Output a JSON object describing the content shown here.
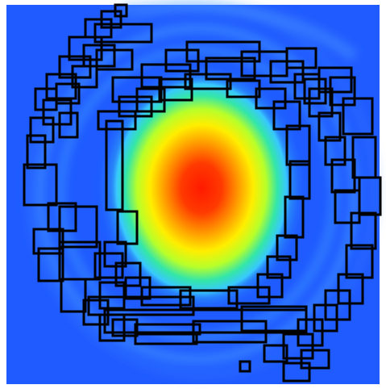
{
  "figure": {
    "kind": "heatmap with overlaid box outlines",
    "colormap": "jet",
    "background_color": "#1f5bff",
    "outline_color": "#000000"
  }
}
